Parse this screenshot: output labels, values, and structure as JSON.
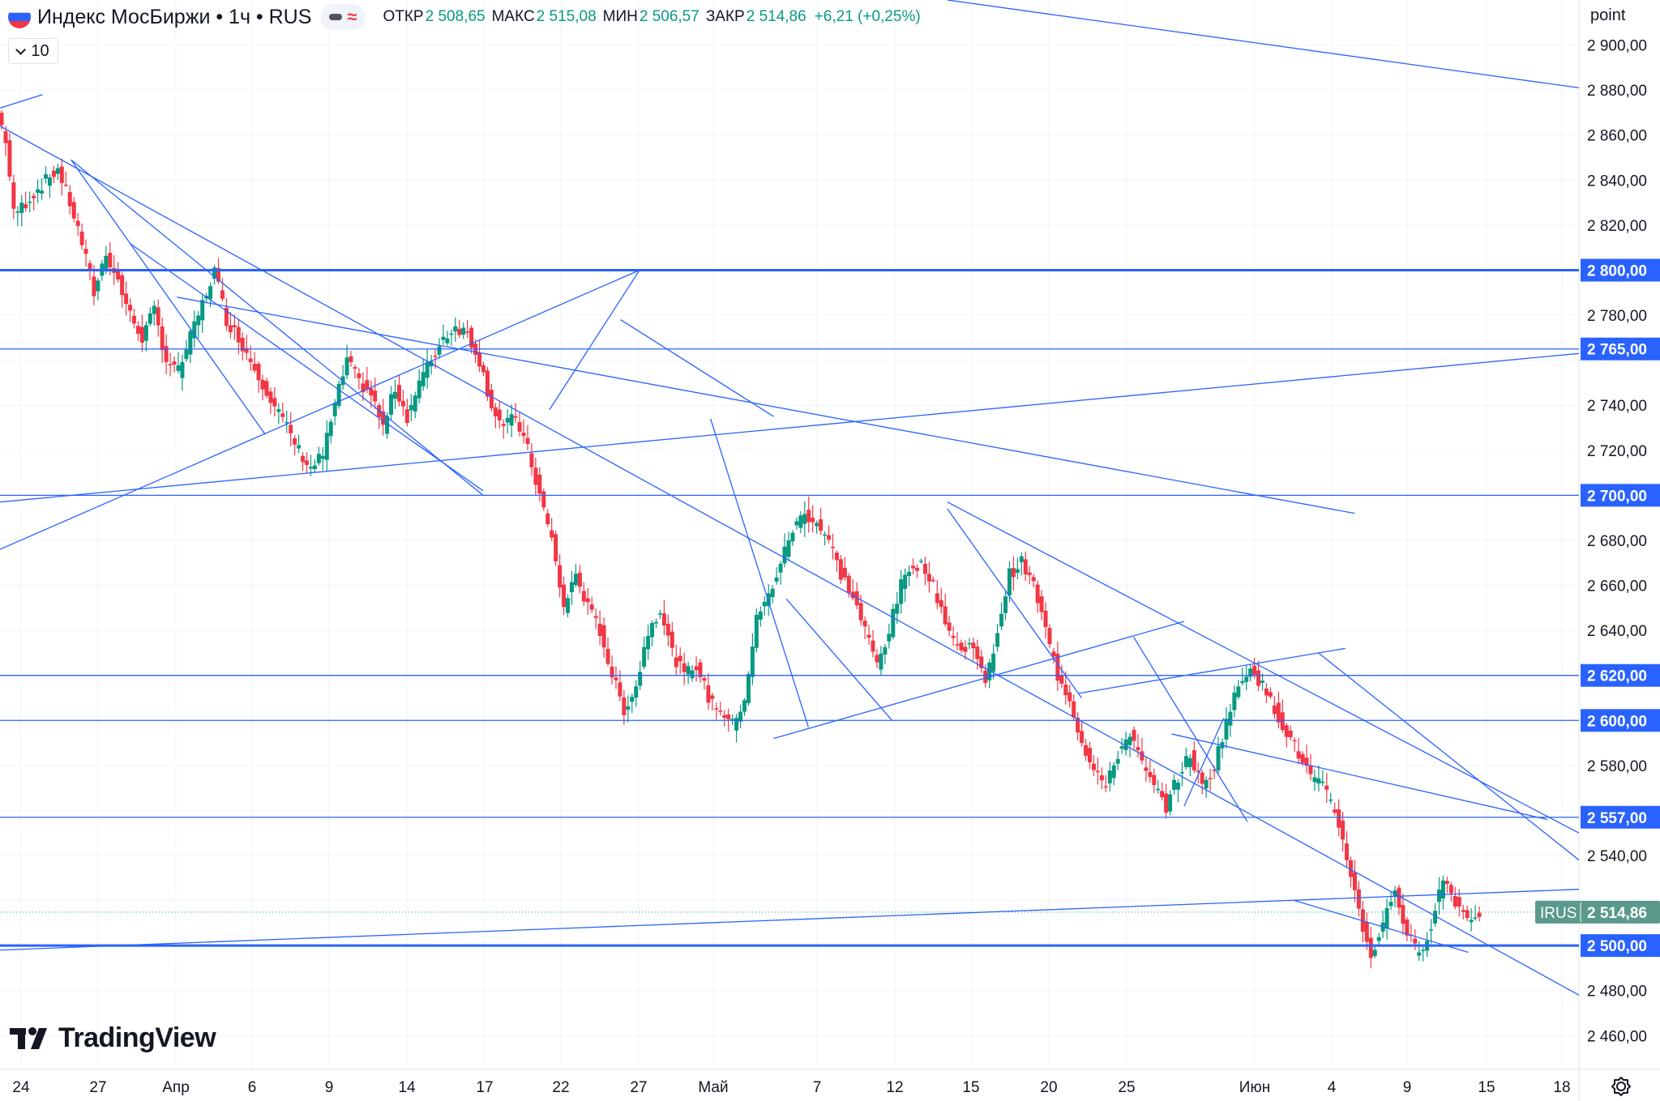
{
  "header": {
    "title": "Индекс МосБиржи • 1ч • RUS",
    "ohlc": [
      {
        "label": "ОТКР",
        "value": "2 508,65"
      },
      {
        "label": "МАКС",
        "value": "2 515,08"
      },
      {
        "label": "МИН",
        "value": "2 506,57"
      },
      {
        "label": "ЗАКР",
        "value": "2 514,86"
      }
    ],
    "change": "+6,21 (+0,25%)"
  },
  "indicator_count": "10",
  "logo_text": "TradingView",
  "axis_unit": "point",
  "colors": {
    "up": "#089981",
    "down": "#f23645",
    "line": "#2962ff",
    "label_bg": "#2962ff",
    "last_price_bg": "#5b9a8b",
    "grid": "#f0f3fa"
  },
  "chart_data": {
    "type": "candlestick",
    "symbol": "IRUS",
    "last_price": 2514.86,
    "last_price_label": "2 514,86",
    "ylim": [
      2445,
      2920
    ],
    "y_ticks": [
      {
        "v": 2900,
        "l": "2 900,00"
      },
      {
        "v": 2880,
        "l": "2 880,00"
      },
      {
        "v": 2860,
        "l": "2 860,00"
      },
      {
        "v": 2840,
        "l": "2 840,00"
      },
      {
        "v": 2820,
        "l": "2 820,00"
      },
      {
        "v": 2780,
        "l": "2 780,00"
      },
      {
        "v": 2740,
        "l": "2 740,00"
      },
      {
        "v": 2720,
        "l": "2 720,00"
      },
      {
        "v": 2680,
        "l": "2 680,00"
      },
      {
        "v": 2660,
        "l": "2 660,00"
      },
      {
        "v": 2640,
        "l": "2 640,00"
      },
      {
        "v": 2580,
        "l": "2 580,00"
      },
      {
        "v": 2540,
        "l": "2 540,00"
      },
      {
        "v": 2480,
        "l": "2 480,00"
      },
      {
        "v": 2460,
        "l": "2 460,00"
      }
    ],
    "x_ticks": [
      "24",
      "27",
      "Апр",
      "6",
      "9",
      "14",
      "17",
      "22",
      "27",
      "Май",
      "7",
      "12",
      "15",
      "20",
      "25",
      "Июн",
      "4",
      "9",
      "15",
      "18"
    ],
    "horizontal_levels": [
      {
        "v": 2800,
        "l": "2 800,00",
        "thick": true
      },
      {
        "v": 2765,
        "l": "2 765,00",
        "thick": false
      },
      {
        "v": 2700,
        "l": "2 700,00",
        "thick": false
      },
      {
        "v": 2620,
        "l": "2 620,00",
        "thick": false
      },
      {
        "v": 2600,
        "l": "2 600,00",
        "thick": false
      },
      {
        "v": 2557,
        "l": "2 557,00",
        "thick": false
      },
      {
        "v": 2500,
        "l": "2 500,00",
        "thick": true
      }
    ],
    "price_path": [
      [
        0,
        2870
      ],
      [
        4,
        2858
      ],
      [
        8,
        2825
      ],
      [
        14,
        2830
      ],
      [
        22,
        2838
      ],
      [
        30,
        2845
      ],
      [
        36,
        2830
      ],
      [
        42,
        2812
      ],
      [
        48,
        2790
      ],
      [
        54,
        2808
      ],
      [
        60,
        2795
      ],
      [
        66,
        2780
      ],
      [
        72,
        2770
      ],
      [
        78,
        2782
      ],
      [
        84,
        2760
      ],
      [
        90,
        2755
      ],
      [
        96,
        2770
      ],
      [
        102,
        2785
      ],
      [
        108,
        2800
      ],
      [
        114,
        2778
      ],
      [
        120,
        2770
      ],
      [
        126,
        2760
      ],
      [
        132,
        2750
      ],
      [
        138,
        2740
      ],
      [
        144,
        2730
      ],
      [
        150,
        2720
      ],
      [
        156,
        2712
      ],
      [
        162,
        2718
      ],
      [
        168,
        2740
      ],
      [
        174,
        2760
      ],
      [
        180,
        2750
      ],
      [
        186,
        2745
      ],
      [
        192,
        2730
      ],
      [
        198,
        2748
      ],
      [
        204,
        2735
      ],
      [
        210,
        2750
      ],
      [
        216,
        2760
      ],
      [
        222,
        2770
      ],
      [
        228,
        2775
      ],
      [
        234,
        2772
      ],
      [
        240,
        2760
      ],
      [
        246,
        2740
      ],
      [
        252,
        2730
      ],
      [
        258,
        2735
      ],
      [
        264,
        2720
      ],
      [
        270,
        2700
      ],
      [
        276,
        2680
      ],
      [
        282,
        2650
      ],
      [
        288,
        2665
      ],
      [
        294,
        2650
      ],
      [
        300,
        2640
      ],
      [
        306,
        2620
      ],
      [
        312,
        2605
      ],
      [
        318,
        2615
      ],
      [
        324,
        2640
      ],
      [
        330,
        2650
      ],
      [
        336,
        2630
      ],
      [
        342,
        2620
      ],
      [
        348,
        2625
      ],
      [
        354,
        2610
      ],
      [
        360,
        2605
      ],
      [
        366,
        2598
      ],
      [
        372,
        2610
      ],
      [
        378,
        2645
      ],
      [
        384,
        2655
      ],
      [
        390,
        2670
      ],
      [
        396,
        2685
      ],
      [
        402,
        2692
      ],
      [
        408,
        2688
      ],
      [
        414,
        2680
      ],
      [
        420,
        2665
      ],
      [
        426,
        2655
      ],
      [
        432,
        2640
      ],
      [
        438,
        2625
      ],
      [
        444,
        2640
      ],
      [
        450,
        2660
      ],
      [
        456,
        2670
      ],
      [
        462,
        2668
      ],
      [
        468,
        2655
      ],
      [
        474,
        2640
      ],
      [
        480,
        2630
      ],
      [
        486,
        2635
      ],
      [
        492,
        2615
      ],
      [
        498,
        2640
      ],
      [
        504,
        2665
      ],
      [
        510,
        2670
      ],
      [
        516,
        2660
      ],
      [
        522,
        2640
      ],
      [
        528,
        2620
      ],
      [
        534,
        2610
      ],
      [
        540,
        2590
      ],
      [
        546,
        2580
      ],
      [
        552,
        2570
      ],
      [
        558,
        2585
      ],
      [
        564,
        2595
      ],
      [
        570,
        2580
      ],
      [
        576,
        2570
      ],
      [
        582,
        2562
      ],
      [
        588,
        2575
      ],
      [
        594,
        2585
      ],
      [
        600,
        2570
      ],
      [
        606,
        2580
      ],
      [
        612,
        2600
      ],
      [
        618,
        2615
      ],
      [
        624,
        2625
      ],
      [
        630,
        2615
      ],
      [
        636,
        2605
      ],
      [
        642,
        2595
      ],
      [
        648,
        2585
      ],
      [
        654,
        2575
      ],
      [
        660,
        2570
      ],
      [
        666,
        2560
      ],
      [
        672,
        2540
      ],
      [
        678,
        2515
      ],
      [
        684,
        2495
      ],
      [
        690,
        2510
      ],
      [
        696,
        2525
      ],
      [
        702,
        2505
      ],
      [
        708,
        2495
      ],
      [
        714,
        2510
      ],
      [
        720,
        2530
      ],
      [
        726,
        2520
      ],
      [
        732,
        2512
      ],
      [
        738,
        2514.86
      ]
    ],
    "trend_lines": [
      [
        [
          0.0,
          2872
        ],
        [
          0.027,
          2878
        ]
      ],
      [
        [
          0.0,
          2864
        ],
        [
          1.0,
          2478
        ]
      ],
      [
        [
          0.045,
          2849
        ],
        [
          0.168,
          2727
        ]
      ],
      [
        [
          0.045,
          2849
        ],
        [
          0.306,
          2700
        ]
      ],
      [
        [
          0.082,
          2812
        ],
        [
          0.306,
          2702
        ]
      ],
      [
        [
          0.112,
          2788
        ],
        [
          0.858,
          2692
        ]
      ],
      [
        [
          0.0,
          2676
        ],
        [
          0.405,
          2800
        ]
      ],
      [
        [
          0.0,
          2697
        ],
        [
          1.0,
          2763
        ]
      ],
      [
        [
          0.348,
          2738
        ],
        [
          0.405,
          2800
        ]
      ],
      [
        [
          0.393,
          2778
        ],
        [
          0.49,
          2735
        ]
      ],
      [
        [
          0.45,
          2734
        ],
        [
          0.512,
          2597
        ]
      ],
      [
        [
          0.49,
          2592
        ],
        [
          0.75,
          2644
        ]
      ],
      [
        [
          0.498,
          2654
        ],
        [
          0.565,
          2600
        ]
      ],
      [
        [
          0.6,
          2697
        ],
        [
          1.0,
          2550
        ]
      ],
      [
        [
          0.6,
          2694
        ],
        [
          0.685,
          2610
        ]
      ],
      [
        [
          0.683,
          2612
        ],
        [
          0.852,
          2632
        ]
      ],
      [
        [
          0.718,
          2637
        ],
        [
          0.79,
          2555
        ]
      ],
      [
        [
          0.742,
          2594
        ],
        [
          0.98,
          2556
        ]
      ],
      [
        [
          0.75,
          2562
        ],
        [
          0.775,
          2601
        ]
      ],
      [
        [
          0.835,
          2630
        ],
        [
          1.0,
          2538
        ]
      ],
      [
        [
          0.82,
          2520
        ],
        [
          0.93,
          2497
        ]
      ],
      [
        [
          0.0,
          2498
        ],
        [
          1.0,
          2525
        ]
      ],
      [
        [
          0.6,
          2920
        ],
        [
          1.0,
          2881
        ]
      ]
    ]
  }
}
